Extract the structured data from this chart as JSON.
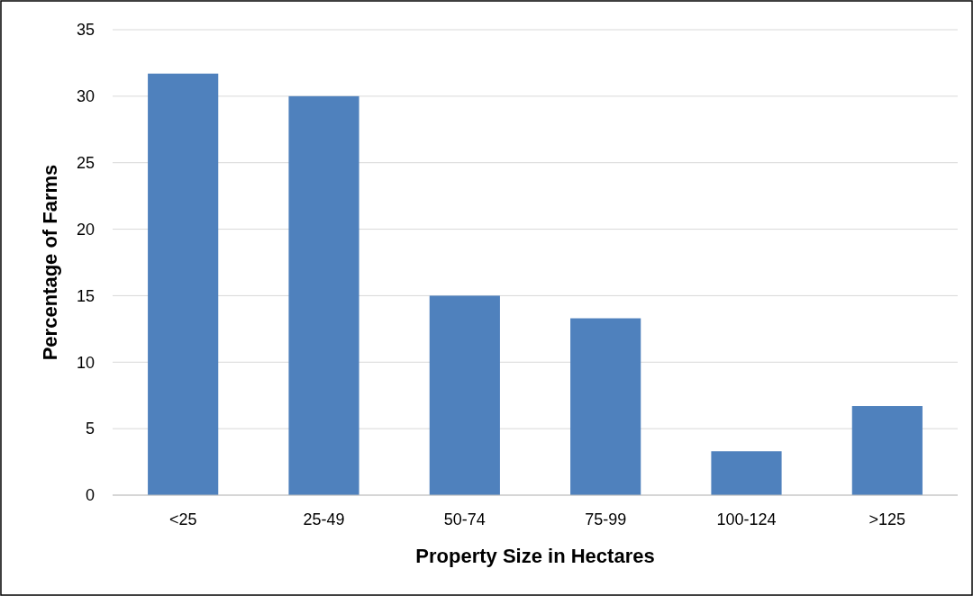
{
  "chart_data": {
    "type": "bar",
    "xlabel": "Property Size in Hectares",
    "ylabel": "Percentage of Farms",
    "categories": [
      "<25",
      "25-49",
      "50-74",
      "75-99",
      "100-124",
      ">125"
    ],
    "values": [
      31.7,
      30,
      15,
      13.3,
      3.3,
      6.7
    ],
    "color": "#4f81bd",
    "ylim": [
      0,
      35
    ],
    "yticks": [
      0,
      5,
      10,
      15,
      20,
      25,
      30,
      35
    ],
    "grid": "y"
  }
}
